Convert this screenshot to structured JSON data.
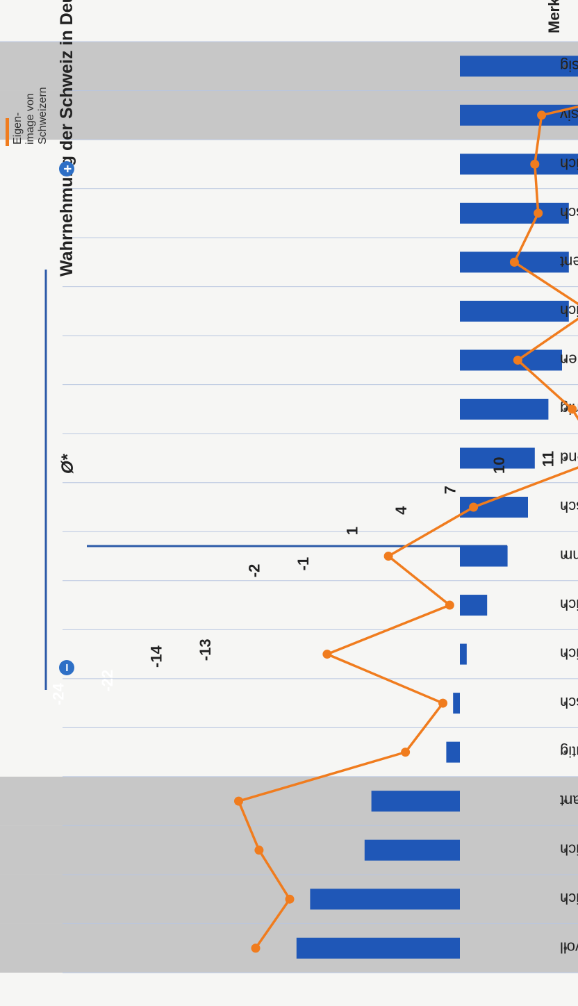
{
  "chart_data": {
    "type": "bar",
    "title": "Wahrnehmung der Schweiz in Deutschland",
    "category_header": "Merkmale",
    "zero_label": "Ø*",
    "plus_label": "+",
    "minus_label": "−",
    "categories": [
      "zuverlässig",
      "exklusiv",
      "aussergewöhnlich",
      "unternehmerisch",
      "intelligent",
      "ehrlich",
      "wohlerzogen",
      "robust, kernig",
      "freiheitsliebend",
      "unverfälscht, authentisch",
      "vornehm",
      "einfallsreich",
      "freundlich",
      "dynamisch",
      "wagemutig",
      "charmant",
      "fröhlich",
      "leidenschaftlich",
      "temperamentvoll"
    ],
    "series": [
      {
        "values": [
          26,
          25,
          19,
          16,
          16,
          16,
          15,
          13,
          11,
          10,
          7,
          4,
          1,
          -1,
          -2,
          -13,
          -14,
          -22,
          -24
        ]
      },
      {
        "name": "Eigen-image von Schweizern",
        "values": [
          43,
          12,
          11,
          11.5,
          8,
          19,
          8.5,
          16.5,
          21,
          2,
          -10.5,
          -1.5,
          -19.5,
          -2.5,
          -8,
          -32.5,
          -29.5,
          -25,
          -30
        ]
      }
    ],
    "legend": {
      "lines": [
        "Eigen-",
        "image von",
        "Schweizern"
      ],
      "position": "top-right"
    },
    "highlighted_rows": [
      0,
      1,
      15,
      16,
      17,
      18
    ],
    "ylim": [
      -36,
      45
    ],
    "colors": {
      "bar": "#1f57b7",
      "line": "#f07c1e",
      "highlight": "#c7c7c7",
      "axis": "#2c5aa8"
    }
  }
}
